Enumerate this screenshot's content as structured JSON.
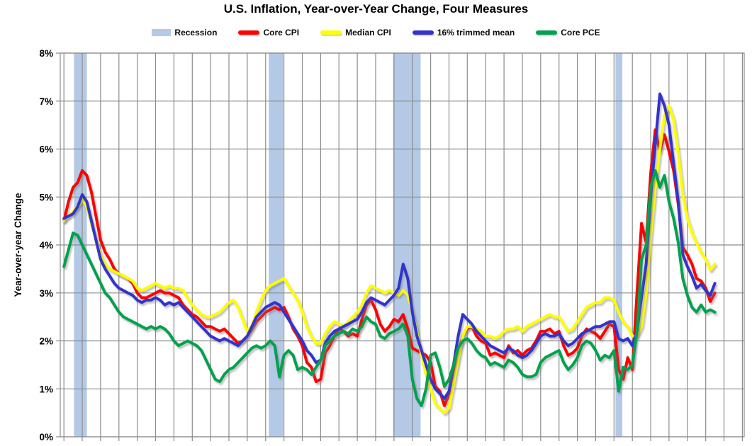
{
  "header": {
    "title": "U.S. Inflation, Year-over-Year Change, Four Measures"
  },
  "legend": {
    "items": [
      {
        "label": "Recession",
        "color": "#B3C9E6",
        "swatch": "rect"
      },
      {
        "label": "Core CPI",
        "color": "#FF0000",
        "swatch": "line"
      },
      {
        "label": "Median CPI",
        "color": "#FFFF00",
        "swatch": "line"
      },
      {
        "label": "16% trimmed mean",
        "color": "#3333CC",
        "swatch": "line"
      },
      {
        "label": "Core PCE",
        "color": "#00A14E",
        "swatch": "line"
      }
    ]
  },
  "styles": {
    "grid_color": "#8C8C8C",
    "axis_color": "#8C8C8C",
    "band_color": "#B3C9E6",
    "text_color": "#000000",
    "background": "#FFFFFF"
  },
  "chart_data": {
    "type": "line",
    "title": "U.S. Inflation, Year-over-Year Change, Four Measures",
    "xlabel": "",
    "ylabel": "Year-over-year Change",
    "ylim": [
      0,
      8
    ],
    "xlim": [
      1989.8,
      2027.1
    ],
    "grid": true,
    "legend_position": "top",
    "y_ticks": [
      {
        "value": 0,
        "label": "0%"
      },
      {
        "value": 1,
        "label": "1%"
      },
      {
        "value": 2,
        "label": "2%"
      },
      {
        "value": 3,
        "label": "3%"
      },
      {
        "value": 4,
        "label": "4%"
      },
      {
        "value": 5,
        "label": "5%"
      },
      {
        "value": 6,
        "label": "6%"
      },
      {
        "value": 7,
        "label": "7%"
      },
      {
        "value": 8,
        "label": "8%"
      }
    ],
    "x_gridlines": {
      "start": 1990,
      "end": 2027,
      "step": 1,
      "labels_visible": false
    },
    "recession_bands": [
      [
        1990.55,
        1991.25
      ],
      [
        2001.17,
        2001.95
      ],
      [
        2007.95,
        2009.45
      ],
      [
        2020.08,
        2020.45
      ]
    ],
    "x_start": 1990.0,
    "x_step": 0.25,
    "x_end": 2025.5,
    "series": [
      {
        "name": "Core CPI",
        "color": "#FF0000",
        "values": [
          4.5,
          4.9,
          5.2,
          5.3,
          5.55,
          5.45,
          5.1,
          4.6,
          4.1,
          3.85,
          3.7,
          3.5,
          3.4,
          3.35,
          3.3,
          3.2,
          3.0,
          2.9,
          2.9,
          2.95,
          3.0,
          3.05,
          3.0,
          3.0,
          2.95,
          2.9,
          2.75,
          2.65,
          2.55,
          2.5,
          2.4,
          2.3,
          2.3,
          2.25,
          2.2,
          2.25,
          2.15,
          2.05,
          1.95,
          2.0,
          2.1,
          2.25,
          2.4,
          2.5,
          2.6,
          2.65,
          2.7,
          2.65,
          2.7,
          2.5,
          2.25,
          2.1,
          1.9,
          1.55,
          1.45,
          1.15,
          1.2,
          1.75,
          1.9,
          2.1,
          2.25,
          2.2,
          2.1,
          2.15,
          2.1,
          2.45,
          2.75,
          2.85,
          2.65,
          2.35,
          2.2,
          2.3,
          2.45,
          2.4,
          2.55,
          2.25,
          1.85,
          1.8,
          1.75,
          1.7,
          1.55,
          1.05,
          0.95,
          0.65,
          0.9,
          1.3,
          1.75,
          2.1,
          2.25,
          2.3,
          2.1,
          2.0,
          1.95,
          1.7,
          1.75,
          1.7,
          1.65,
          1.9,
          1.75,
          1.8,
          1.7,
          1.8,
          1.85,
          2.0,
          2.2,
          2.2,
          2.25,
          2.15,
          2.2,
          1.9,
          1.7,
          1.75,
          1.85,
          2.1,
          2.25,
          2.2,
          2.15,
          2.05,
          2.2,
          2.35,
          2.3,
          1.4,
          1.2,
          1.65,
          1.4,
          3.0,
          4.45,
          4.05,
          5.5,
          6.4,
          5.95,
          6.3,
          5.95,
          5.55,
          4.85,
          3.95,
          3.8,
          3.6,
          3.3,
          3.25,
          3.1,
          2.82,
          3.0
        ]
      },
      {
        "name": "Median CPI",
        "color": "#FFFF00",
        "values": [
          4.5,
          4.6,
          4.7,
          4.8,
          4.95,
          4.8,
          4.45,
          4.1,
          3.8,
          3.6,
          3.5,
          3.45,
          3.4,
          3.35,
          3.3,
          3.25,
          3.1,
          3.05,
          3.1,
          3.15,
          3.2,
          3.15,
          3.1,
          3.15,
          3.1,
          3.1,
          3.05,
          2.9,
          2.75,
          2.65,
          2.55,
          2.5,
          2.5,
          2.55,
          2.6,
          2.7,
          2.8,
          2.85,
          2.7,
          2.45,
          2.2,
          2.3,
          2.6,
          2.85,
          3.05,
          3.15,
          3.2,
          3.25,
          3.3,
          3.15,
          3.0,
          2.85,
          2.6,
          2.3,
          2.1,
          1.95,
          1.95,
          2.15,
          2.3,
          2.4,
          2.35,
          2.3,
          2.4,
          2.5,
          2.6,
          2.75,
          3.0,
          3.15,
          3.1,
          3.05,
          3.0,
          3.05,
          3.0,
          2.95,
          3.05,
          2.95,
          2.6,
          2.2,
          1.7,
          1.3,
          1.0,
          0.7,
          0.6,
          0.5,
          0.6,
          1.1,
          1.6,
          2.1,
          2.3,
          2.3,
          2.25,
          2.2,
          2.1,
          2.1,
          2.05,
          2.1,
          2.2,
          2.25,
          2.25,
          2.3,
          2.2,
          2.3,
          2.35,
          2.4,
          2.45,
          2.5,
          2.55,
          2.5,
          2.5,
          2.35,
          2.2,
          2.25,
          2.4,
          2.55,
          2.7,
          2.75,
          2.8,
          2.8,
          2.9,
          2.9,
          2.85,
          2.6,
          2.4,
          2.3,
          2.1,
          2.1,
          2.3,
          3.0,
          4.2,
          5.2,
          6.0,
          6.7,
          6.9,
          6.6,
          5.9,
          5.05,
          4.55,
          4.25,
          4.05,
          3.85,
          3.7,
          3.48,
          3.6
        ]
      },
      {
        "name": "16% trimmed mean",
        "color": "#3333CC",
        "values": [
          4.55,
          4.6,
          4.65,
          4.8,
          5.05,
          4.9,
          4.5,
          4.1,
          3.7,
          3.5,
          3.35,
          3.2,
          3.1,
          3.05,
          3.0,
          2.95,
          2.85,
          2.8,
          2.85,
          2.85,
          2.9,
          2.85,
          2.75,
          2.8,
          2.75,
          2.8,
          2.7,
          2.6,
          2.5,
          2.4,
          2.3,
          2.2,
          2.1,
          2.05,
          2.0,
          2.05,
          2.0,
          1.95,
          1.9,
          2.0,
          2.1,
          2.3,
          2.5,
          2.6,
          2.7,
          2.75,
          2.8,
          2.75,
          2.6,
          2.45,
          2.3,
          2.15,
          2.0,
          1.8,
          1.7,
          1.55,
          1.6,
          1.95,
          2.1,
          2.2,
          2.25,
          2.3,
          2.35,
          2.4,
          2.45,
          2.6,
          2.8,
          2.9,
          2.85,
          2.8,
          2.75,
          2.85,
          2.95,
          3.1,
          3.6,
          3.3,
          2.6,
          2.1,
          1.8,
          1.5,
          1.2,
          1.0,
          0.9,
          0.8,
          0.95,
          1.5,
          2.1,
          2.55,
          2.45,
          2.35,
          2.2,
          2.1,
          2.0,
          1.9,
          1.85,
          1.8,
          1.75,
          1.85,
          1.8,
          1.7,
          1.65,
          1.7,
          1.8,
          1.95,
          2.1,
          2.15,
          2.1,
          2.1,
          2.15,
          2.0,
          1.9,
          1.95,
          2.05,
          2.15,
          2.2,
          2.25,
          2.3,
          2.3,
          2.35,
          2.4,
          2.4,
          2.05,
          2.0,
          2.05,
          1.9,
          2.2,
          2.9,
          3.6,
          5.0,
          6.1,
          7.15,
          6.9,
          6.5,
          5.7,
          4.9,
          3.8,
          3.55,
          3.35,
          3.1,
          3.18,
          3.05,
          2.95,
          3.2
        ]
      },
      {
        "name": "Core PCE",
        "color": "#00A14E",
        "values": [
          3.55,
          3.9,
          4.25,
          4.2,
          4.0,
          3.8,
          3.6,
          3.4,
          3.2,
          3.0,
          2.9,
          2.75,
          2.6,
          2.5,
          2.45,
          2.4,
          2.35,
          2.3,
          2.25,
          2.3,
          2.25,
          2.3,
          2.25,
          2.15,
          2.0,
          1.9,
          1.95,
          2.0,
          1.95,
          1.9,
          1.8,
          1.6,
          1.4,
          1.2,
          1.15,
          1.3,
          1.4,
          1.45,
          1.55,
          1.65,
          1.75,
          1.85,
          1.9,
          1.85,
          1.9,
          2.0,
          1.9,
          1.25,
          1.7,
          1.8,
          1.7,
          1.4,
          1.45,
          1.4,
          1.3,
          1.45,
          1.6,
          1.9,
          2.0,
          2.1,
          2.15,
          2.2,
          2.15,
          2.25,
          2.2,
          2.3,
          2.5,
          2.4,
          2.35,
          2.1,
          2.05,
          2.15,
          2.2,
          2.25,
          2.35,
          2.1,
          1.2,
          0.8,
          0.65,
          1.0,
          1.7,
          1.75,
          1.45,
          1.05,
          1.2,
          1.5,
          1.85,
          2.0,
          2.05,
          1.95,
          1.8,
          1.7,
          1.65,
          1.5,
          1.55,
          1.5,
          1.45,
          1.6,
          1.55,
          1.45,
          1.3,
          1.25,
          1.25,
          1.3,
          1.55,
          1.65,
          1.7,
          1.75,
          1.8,
          1.55,
          1.4,
          1.5,
          1.65,
          1.9,
          2.0,
          1.95,
          1.8,
          1.6,
          1.7,
          1.65,
          1.8,
          0.95,
          1.45,
          1.4,
          1.5,
          2.2,
          3.7,
          4.0,
          5.2,
          5.55,
          5.2,
          5.45,
          4.9,
          4.55,
          4.05,
          3.3,
          2.95,
          2.7,
          2.6,
          2.75,
          2.6,
          2.65,
          2.6
        ]
      }
    ]
  }
}
